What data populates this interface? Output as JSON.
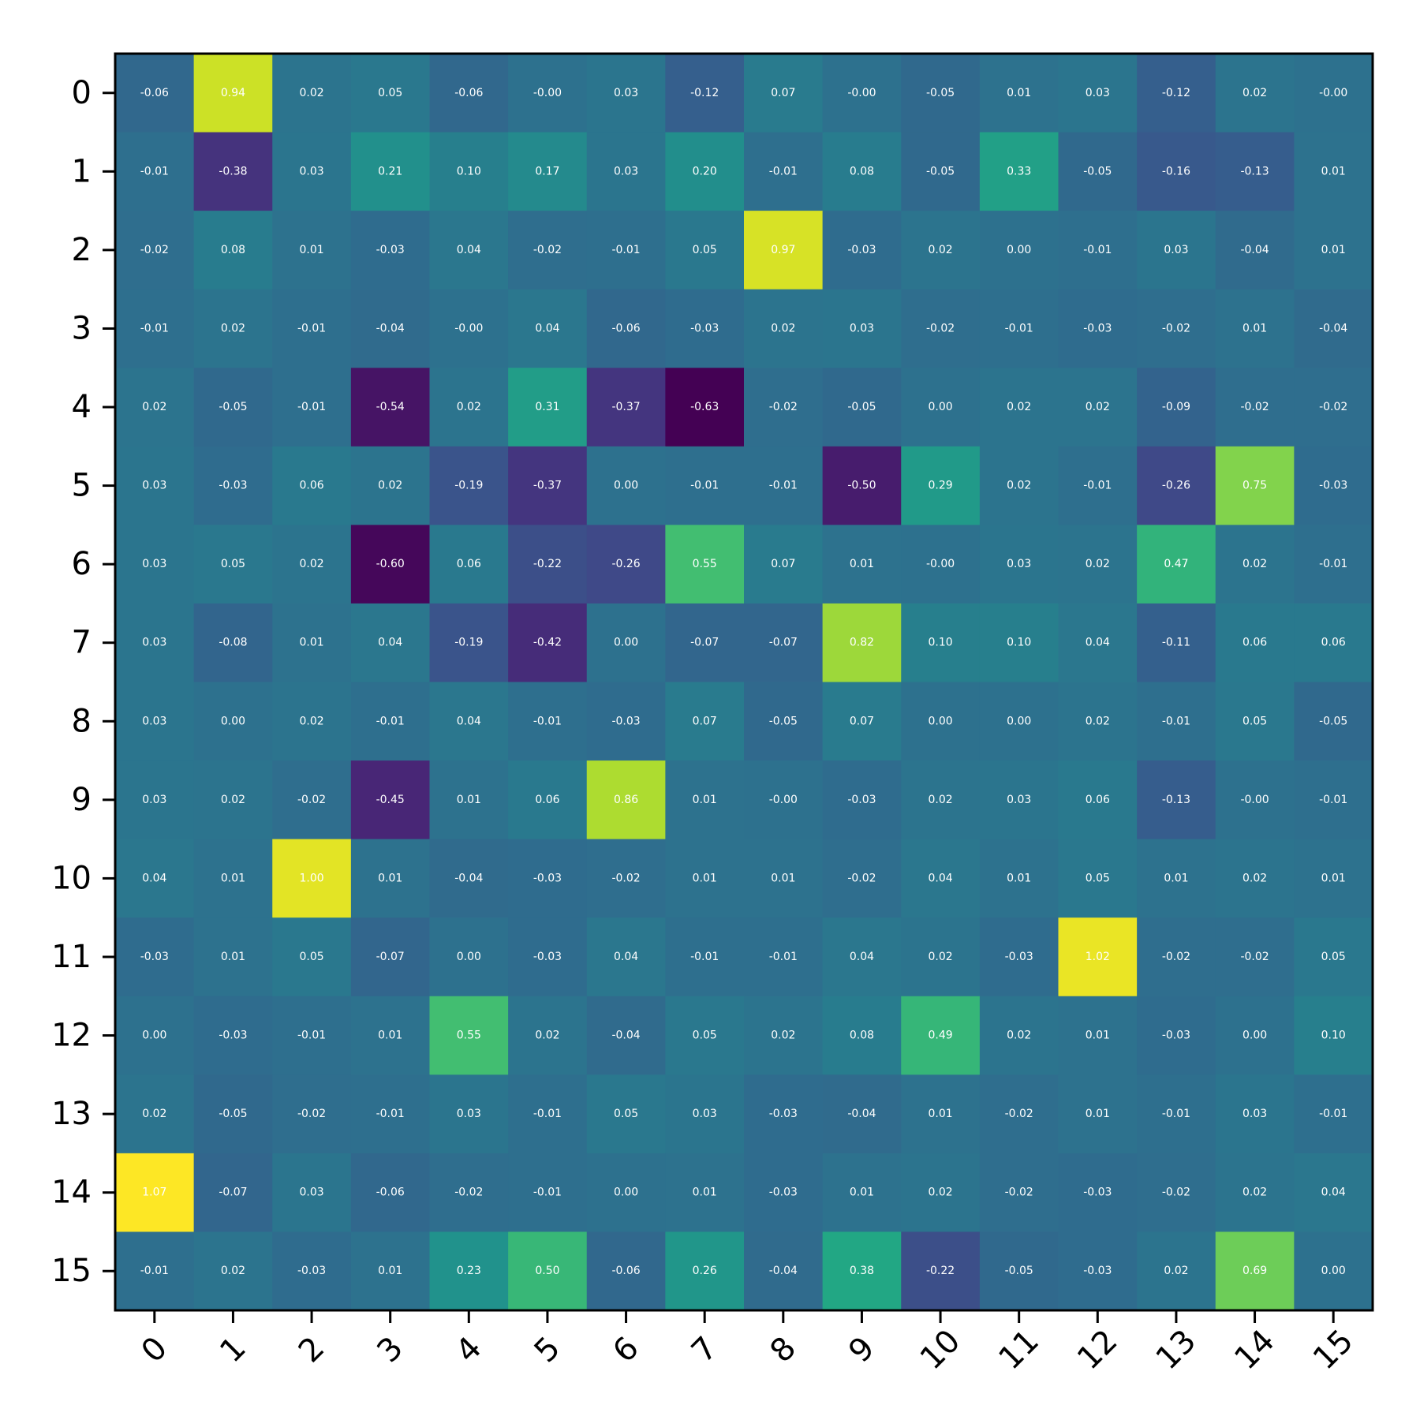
{
  "chart_data": {
    "type": "heatmap",
    "title": "",
    "xlabel": "",
    "ylabel": "",
    "x_categories": [
      "0",
      "1",
      "2",
      "3",
      "4",
      "5",
      "6",
      "7",
      "8",
      "9",
      "10",
      "11",
      "12",
      "13",
      "14",
      "15"
    ],
    "y_categories": [
      "0",
      "1",
      "2",
      "3",
      "4",
      "5",
      "6",
      "7",
      "8",
      "9",
      "10",
      "11",
      "12",
      "13",
      "14",
      "15"
    ],
    "x_tick_rotation_deg": 45,
    "colormap": "viridis",
    "value_range": [
      -0.63,
      1.07
    ],
    "grid": false,
    "annotations": true,
    "matrix": [
      [
        "-0.06",
        "0.94",
        "0.02",
        "0.05",
        "-0.06",
        "-0.00",
        "0.03",
        "-0.12",
        "0.07",
        "-0.00",
        "-0.05",
        "0.01",
        "0.03",
        "-0.12",
        "0.02",
        "-0.00"
      ],
      [
        "-0.01",
        "-0.38",
        "0.03",
        "0.21",
        "0.10",
        "0.17",
        "0.03",
        "0.20",
        "-0.01",
        "0.08",
        "-0.05",
        "0.33",
        "-0.05",
        "-0.16",
        "-0.13",
        "0.01"
      ],
      [
        "-0.02",
        "0.08",
        "0.01",
        "-0.03",
        "0.04",
        "-0.02",
        "-0.01",
        "0.05",
        "0.97",
        "-0.03",
        "0.02",
        "0.00",
        "-0.01",
        "0.03",
        "-0.04",
        "0.01"
      ],
      [
        "-0.01",
        "0.02",
        "-0.01",
        "-0.04",
        "-0.00",
        "0.04",
        "-0.06",
        "-0.03",
        "0.02",
        "0.03",
        "-0.02",
        "-0.01",
        "-0.03",
        "-0.02",
        "0.01",
        "-0.04"
      ],
      [
        "0.02",
        "-0.05",
        "-0.01",
        "-0.54",
        "0.02",
        "0.31",
        "-0.37",
        "-0.63",
        "-0.02",
        "-0.05",
        "0.00",
        "0.02",
        "0.02",
        "-0.09",
        "-0.02",
        "-0.02"
      ],
      [
        "0.03",
        "-0.03",
        "0.06",
        "0.02",
        "-0.19",
        "-0.37",
        "0.00",
        "-0.01",
        "-0.01",
        "-0.50",
        "0.29",
        "0.02",
        "-0.01",
        "-0.26",
        "0.75",
        "-0.03"
      ],
      [
        "0.03",
        "0.05",
        "0.02",
        "-0.60",
        "0.06",
        "-0.22",
        "-0.26",
        "0.55",
        "0.07",
        "0.01",
        "-0.00",
        "0.03",
        "0.02",
        "0.47",
        "0.02",
        "-0.01"
      ],
      [
        "0.03",
        "-0.08",
        "0.01",
        "0.04",
        "-0.19",
        "-0.42",
        "0.00",
        "-0.07",
        "-0.07",
        "0.82",
        "0.10",
        "0.10",
        "0.04",
        "-0.11",
        "0.06",
        "0.06"
      ],
      [
        "0.03",
        "0.00",
        "0.02",
        "-0.01",
        "0.04",
        "-0.01",
        "-0.03",
        "0.07",
        "-0.05",
        "0.07",
        "0.00",
        "0.00",
        "0.02",
        "-0.01",
        "0.05",
        "-0.05"
      ],
      [
        "0.03",
        "0.02",
        "-0.02",
        "-0.45",
        "0.01",
        "0.06",
        "0.86",
        "0.01",
        "-0.00",
        "-0.03",
        "0.02",
        "0.03",
        "0.06",
        "-0.13",
        "-0.00",
        "-0.01"
      ],
      [
        "0.04",
        "0.01",
        "1.00",
        "0.01",
        "-0.04",
        "-0.03",
        "-0.02",
        "0.01",
        "0.01",
        "-0.02",
        "0.04",
        "0.01",
        "0.05",
        "0.01",
        "0.02",
        "0.01"
      ],
      [
        "-0.03",
        "0.01",
        "0.05",
        "-0.07",
        "0.00",
        "-0.03",
        "0.04",
        "-0.01",
        "-0.01",
        "0.04",
        "0.02",
        "-0.03",
        "1.02",
        "-0.02",
        "-0.02",
        "0.05"
      ],
      [
        "0.00",
        "-0.03",
        "-0.01",
        "0.01",
        "0.55",
        "0.02",
        "-0.04",
        "0.05",
        "0.02",
        "0.08",
        "0.49",
        "0.02",
        "0.01",
        "-0.03",
        "0.00",
        "0.10"
      ],
      [
        "0.02",
        "-0.05",
        "-0.02",
        "-0.01",
        "0.03",
        "-0.01",
        "0.05",
        "0.03",
        "-0.03",
        "-0.04",
        "0.01",
        "-0.02",
        "0.01",
        "-0.01",
        "0.03",
        "-0.01"
      ],
      [
        "1.07",
        "-0.07",
        "0.03",
        "-0.06",
        "-0.02",
        "-0.01",
        "0.00",
        "0.01",
        "-0.03",
        "0.01",
        "0.02",
        "-0.02",
        "-0.03",
        "-0.02",
        "0.02",
        "0.04"
      ],
      [
        "-0.01",
        "0.02",
        "-0.03",
        "0.01",
        "0.23",
        "0.50",
        "-0.06",
        "0.26",
        "-0.04",
        "0.38",
        "-0.22",
        "-0.05",
        "-0.03",
        "0.02",
        "0.69",
        "0.00"
      ]
    ]
  }
}
